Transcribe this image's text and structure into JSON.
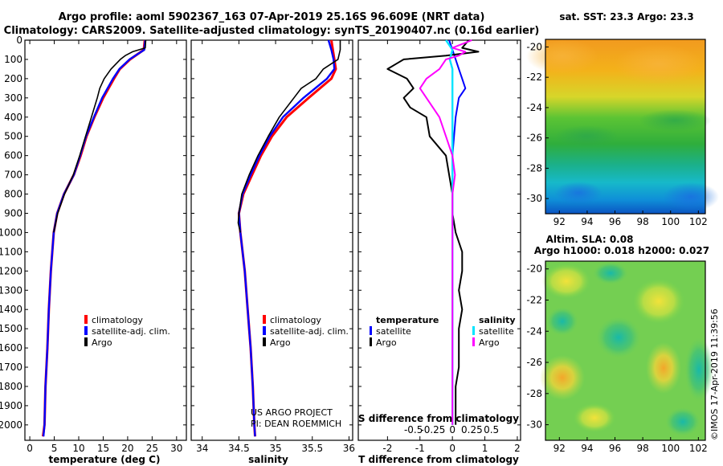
{
  "header": {
    "line1": "Argo profile: aoml 5902367_163 07-Apr-2019 25.16S 96.609E (NRT data)",
    "line2": "Climatology: CARS2009. Satellite-adjusted climatology: synTS_20190407.nc (0.16d earlier)"
  },
  "colors": {
    "climatology": "#ff0000",
    "satellite": "#0000ff",
    "argo": "#000000",
    "sat_s": "#00e5ff",
    "argo_s": "#ff00ff"
  },
  "chart_data": [
    {
      "type": "line",
      "id": "temperature",
      "xlabel": "temperature (deg C)",
      "ylabel": "",
      "xlim": [
        -1,
        32
      ],
      "ylim": [
        2080,
        0
      ],
      "x_ticks": [
        0,
        5,
        10,
        15,
        20,
        25,
        30
      ],
      "y_ticks": [
        0,
        100,
        200,
        300,
        400,
        500,
        600,
        700,
        800,
        900,
        1000,
        1100,
        1200,
        1300,
        1400,
        1500,
        1600,
        1700,
        1800,
        1900,
        2000
      ],
      "legend": {
        "items": [
          "climatology",
          "satellite-adj. clim.",
          "Argo"
        ],
        "placement": "lower-middle"
      },
      "series": [
        {
          "name": "climatology",
          "depth": [
            0,
            50,
            100,
            150,
            200,
            300,
            400,
            500,
            600,
            700,
            800,
            900,
            1000,
            1200,
            1400,
            1600,
            1800,
            2000,
            2060
          ],
          "values": [
            23.5,
            23.3,
            20.5,
            18.4,
            17.2,
            15.0,
            13.2,
            11.6,
            10.4,
            9.0,
            7.0,
            5.6,
            4.9,
            4.3,
            3.9,
            3.6,
            3.2,
            3.0,
            2.7
          ]
        },
        {
          "name": "satellite-adj. clim.",
          "depth": [
            0,
            50,
            100,
            150,
            200,
            300,
            400,
            500,
            600,
            700,
            800,
            900,
            1000,
            1200,
            1400,
            1600,
            1800,
            2000,
            2060
          ],
          "values": [
            23.6,
            23.4,
            20.4,
            18.3,
            17.0,
            14.8,
            13.1,
            11.5,
            10.3,
            9.0,
            7.0,
            5.6,
            4.9,
            4.3,
            3.9,
            3.6,
            3.2,
            3.0,
            2.8
          ]
        },
        {
          "name": "Argo",
          "depth": [
            0,
            40,
            60,
            80,
            100,
            150,
            200,
            250,
            300,
            400,
            500,
            600,
            700,
            800,
            900,
            1000
          ],
          "values": [
            23.7,
            23.6,
            21.0,
            19.5,
            18.5,
            16.6,
            15.2,
            14.3,
            13.8,
            12.6,
            11.4,
            10.2,
            8.9,
            7.1,
            5.7,
            4.9
          ]
        }
      ]
    },
    {
      "type": "line",
      "id": "salinity",
      "xlabel": "salinity",
      "xlim": [
        33.85,
        36.05
      ],
      "ylim": [
        2080,
        0
      ],
      "x_ticks": [
        34,
        34.5,
        35,
        35.5,
        36
      ],
      "legend": {
        "items": [
          "climatology",
          "satellite-adj. clim.",
          "Argo"
        ],
        "placement": "lower-right"
      },
      "credit": [
        "US ARGO PROJECT",
        "PI: DEAN ROEMMICH"
      ],
      "series": [
        {
          "name": "climatology",
          "depth": [
            0,
            50,
            100,
            150,
            200,
            300,
            400,
            500,
            600,
            700,
            800,
            900,
            1000,
            1200,
            1400,
            1600,
            1800,
            2000,
            2060
          ],
          "values": [
            35.76,
            35.78,
            35.8,
            35.82,
            35.76,
            35.45,
            35.15,
            34.95,
            34.8,
            34.68,
            34.56,
            34.5,
            34.52,
            34.58,
            34.62,
            34.66,
            34.69,
            34.71,
            34.72
          ]
        },
        {
          "name": "satellite-adj. clim.",
          "depth": [
            0,
            50,
            100,
            150,
            200,
            300,
            400,
            500,
            600,
            700,
            800,
            900,
            1000,
            1200,
            1400,
            1600,
            1800,
            2000,
            2060
          ],
          "values": [
            35.72,
            35.76,
            35.79,
            35.8,
            35.7,
            35.38,
            35.1,
            34.92,
            34.78,
            34.66,
            34.55,
            34.5,
            34.52,
            34.58,
            34.62,
            34.66,
            34.69,
            34.71,
            34.72
          ]
        },
        {
          "name": "Argo",
          "depth": [
            0,
            50,
            100,
            150,
            200,
            250,
            300,
            400,
            500,
            600,
            700,
            800,
            900,
            950,
            1000
          ],
          "values": [
            35.88,
            35.88,
            35.85,
            35.65,
            35.55,
            35.35,
            35.25,
            35.05,
            34.9,
            34.76,
            34.64,
            34.54,
            34.5,
            34.49,
            34.52
          ]
        }
      ]
    },
    {
      "type": "line",
      "id": "difference",
      "xlabel": "T difference from climatology",
      "title_bottom": "S difference from climatology",
      "xlim": [
        -2.9,
        2.1
      ],
      "ylim": [
        2080,
        0
      ],
      "x_ticks": [
        -2,
        -1,
        0,
        1,
        2
      ],
      "s_ticks": [
        "-0.5",
        "-0.25",
        "0",
        "0.25",
        "0.5"
      ],
      "legend": {
        "temperature": "temperature",
        "salinity": "salinity",
        "items_t": [
          "satellite",
          "Argo"
        ],
        "items_s": [
          "satellite",
          "Argo"
        ],
        "placement": "lower"
      },
      "series": [
        {
          "name": "T satellite",
          "depth": [
            0,
            50,
            100,
            150,
            200,
            250,
            300,
            400,
            600,
            800,
            1000,
            1200,
            1400,
            1600,
            1800,
            2000
          ],
          "values": [
            -0.1,
            0.0,
            0.1,
            0.2,
            0.3,
            0.4,
            0.2,
            0.1,
            0.0,
            0.0,
            0.0,
            0.0,
            0.0,
            0.0,
            0.0,
            0.0
          ]
        },
        {
          "name": "T Argo",
          "depth": [
            0,
            40,
            60,
            80,
            100,
            120,
            150,
            200,
            250,
            300,
            350,
            400,
            500,
            600,
            700,
            800,
            900,
            1000,
            1100,
            1200,
            1300,
            1400,
            1500,
            1600,
            1700,
            1800,
            1900,
            2000
          ],
          "values": [
            0.5,
            0.3,
            0.8,
            -0.2,
            -1.5,
            -1.7,
            -2.0,
            -1.4,
            -1.2,
            -1.5,
            -1.3,
            -0.8,
            -0.7,
            -0.2,
            -0.1,
            0.0,
            0.0,
            0.1,
            0.3,
            0.3,
            0.2,
            0.3,
            0.2,
            0.2,
            0.2,
            0.1,
            0.1,
            0.1
          ]
        },
        {
          "name": "S satellite",
          "depth": [
            0,
            50,
            100,
            150,
            200,
            300,
            400,
            600,
            800,
            1000,
            1200,
            1400,
            1600,
            1800,
            2000
          ],
          "values": [
            -0.05,
            0.0,
            -0.02,
            0.0,
            0.0,
            0.0,
            0.0,
            0.0,
            0.0,
            0.0,
            0.0,
            0.0,
            0.0,
            0.0,
            0.0
          ]
        },
        {
          "name": "S Argo",
          "depth": [
            0,
            40,
            60,
            80,
            100,
            150,
            200,
            250,
            300,
            400,
            500,
            600,
            700,
            800,
            900,
            1000,
            1200,
            1400,
            1600,
            1800,
            2000
          ],
          "values": [
            0.15,
            0.0,
            0.1,
            0.05,
            -0.05,
            -0.1,
            -0.2,
            -0.25,
            -0.2,
            -0.1,
            -0.05,
            0.0,
            0.02,
            0.0,
            0.0,
            0.0,
            0.0,
            0.0,
            0.0,
            0.0,
            0.0
          ]
        }
      ]
    },
    {
      "type": "heatmap",
      "id": "sst_map",
      "title": "sat. SST: 23.3 Argo: 23.3",
      "x_ticks": [
        92,
        94,
        96,
        98,
        100,
        102
      ],
      "y_ticks": [
        -20,
        -22,
        -24,
        -26,
        -28,
        -30
      ]
    },
    {
      "type": "heatmap",
      "id": "sla_map",
      "title_line1": "Altim. SLA: 0.08",
      "title_line2": "Argo h1000: 0.018 h2000: 0.027",
      "x_ticks": [
        92,
        94,
        96,
        98,
        100,
        102
      ],
      "y_ticks": [
        -20,
        -22,
        -24,
        -26,
        -28,
        -30
      ]
    }
  ],
  "footer": {
    "stamp": "©IMOS 17-Apr-2019 11:39:56"
  }
}
